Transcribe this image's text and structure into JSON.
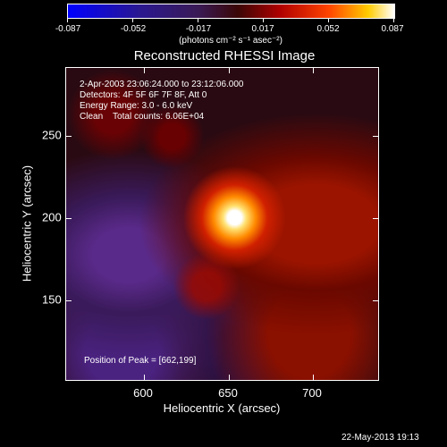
{
  "colorbar": {
    "labels": [
      "-0.087",
      "-0.052",
      "-0.017",
      "0.017",
      "0.052",
      "0.087"
    ],
    "units": "(photons cm⁻² s⁻¹ asec⁻²)"
  },
  "title": "Reconstructed RHESSI Image",
  "info": {
    "line1": "2-Apr-2003 23:06:24.000 to 23:12:06.000",
    "line2": "Detectors: 4F 5F 6F 7F 8F, Att 0",
    "line3": "Energy Range: 3.0 - 6.0 keV",
    "line4": "Clean    Total counts: 6.06E+04",
    "peak": "Position of Peak = [662,199]"
  },
  "axes": {
    "x_title": "Heliocentric X (arcsec)",
    "y_title": "Heliocentric Y (arcsec)",
    "x_ticks": [
      "600",
      "650",
      "700"
    ],
    "y_ticks": [
      "250",
      "200",
      "150"
    ]
  },
  "timestamp": "22-May-2013 19:13"
}
